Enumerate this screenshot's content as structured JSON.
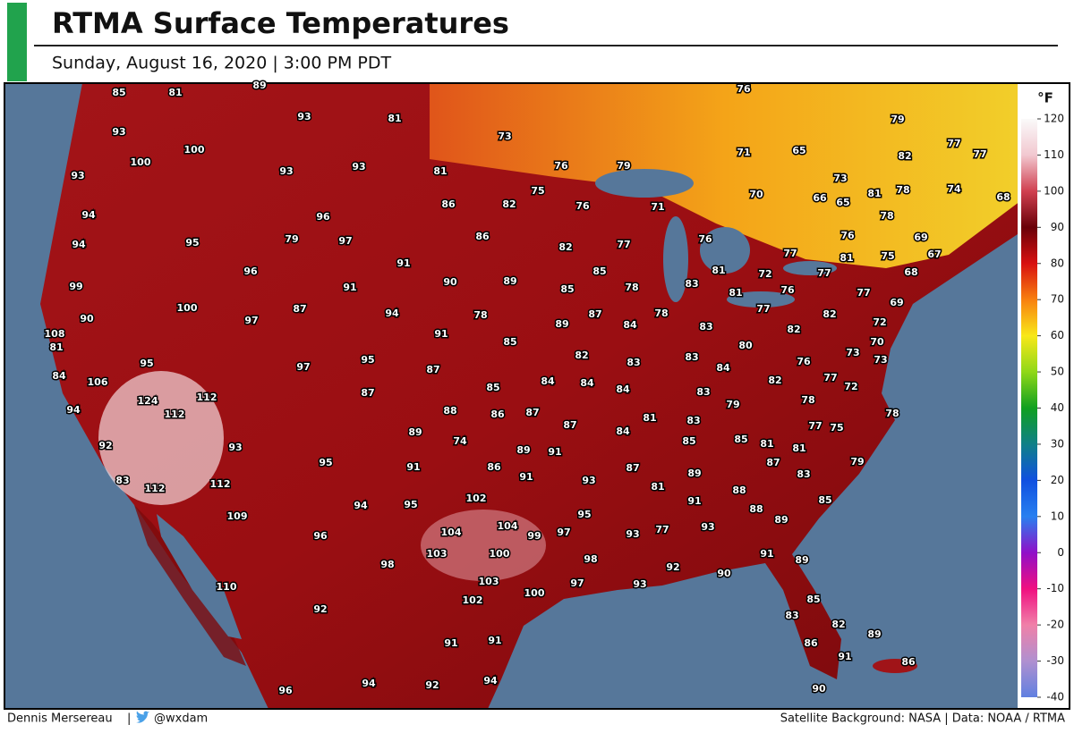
{
  "header": {
    "title": "RTMA Surface Temperatures",
    "subtitle": "Sunday, August 16, 2020  |  3:00 PM PDT"
  },
  "colorbar": {
    "unit": "°F",
    "lim": [
      -40,
      120
    ],
    "ticks": [
      120,
      110,
      100,
      90,
      80,
      70,
      60,
      50,
      40,
      30,
      20,
      10,
      0,
      -10,
      -20,
      -30,
      -40
    ]
  },
  "stations": [
    85,
    81,
    89,
    93,
    81,
    76,
    79,
    93,
    73,
    100,
    100,
    93,
    93,
    81,
    76,
    79,
    71,
    65,
    82,
    77,
    77,
    93,
    75,
    73,
    74,
    68,
    86,
    82,
    76,
    71,
    70,
    66,
    65,
    81,
    78,
    78,
    94,
    96,
    94,
    95,
    79,
    97,
    86,
    82,
    77,
    76,
    76,
    69,
    91,
    96,
    77,
    81,
    75,
    67,
    68,
    81,
    72,
    77,
    99,
    91,
    90,
    89,
    85,
    85,
    78,
    83,
    81,
    76,
    77,
    69,
    100,
    87,
    94,
    78,
    87,
    89,
    84,
    78,
    77,
    82,
    90,
    97,
    108,
    91,
    85,
    83,
    82,
    72,
    81,
    80,
    70,
    95,
    97,
    95,
    87,
    82,
    83,
    83,
    84,
    76,
    73,
    73,
    84,
    106,
    85,
    84,
    84,
    84,
    83,
    82,
    77,
    72,
    124,
    112,
    87,
    78,
    79,
    94,
    112,
    88,
    86,
    87,
    87,
    81,
    83,
    78,
    89,
    84,
    77,
    75,
    74,
    85,
    85,
    81,
    81,
    92,
    93,
    89,
    91,
    87,
    79,
    95,
    91,
    86,
    91,
    93,
    87,
    89,
    83,
    83,
    112,
    112,
    81,
    88,
    102,
    91,
    85,
    94,
    95,
    88,
    89,
    109,
    95,
    104,
    93,
    104,
    99,
    97,
    93,
    77,
    96,
    103,
    100,
    98,
    91,
    89,
    98,
    92,
    90,
    103,
    97,
    93,
    110,
    100,
    102,
    92,
    85,
    83,
    82,
    89,
    91,
    91,
    86,
    91,
    86,
    94,
    94,
    92,
    96,
    90
  ],
  "footer": {
    "author": "Dennis Mersereau",
    "separator": "|",
    "handle": "@wxdam",
    "credits": "Satellite Background: NASA | Data: NOAA / RTMA"
  }
}
